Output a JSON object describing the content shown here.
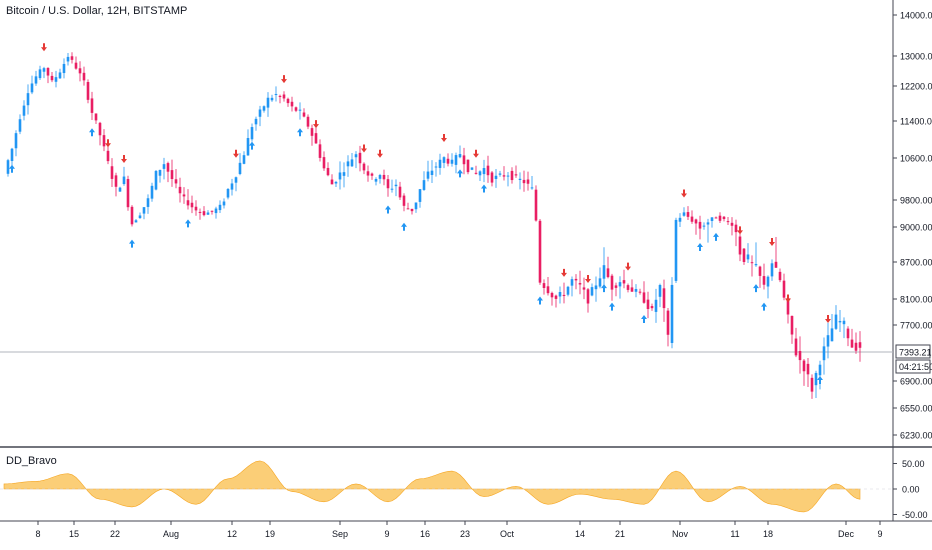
{
  "header": {
    "symbol_title": "Bitcoin / U.S. Dollar, 12H, BITSTAMP"
  },
  "indicator": {
    "name": "DD_Bravo"
  },
  "price_axis": {
    "ticks": [
      "14000.00",
      "13000.00",
      "12200.00",
      "11400.00",
      "10600.00",
      "9800.00",
      "9000.00",
      "8700.00",
      "8100.00",
      "7700.00",
      "6900.00",
      "6550.00",
      "6230.00"
    ],
    "last_price": "7393.21",
    "countdown": "04:21:50"
  },
  "indicator_axis": {
    "ticks": [
      "50.00",
      "0.00",
      "-50.00"
    ]
  },
  "time_axis": {
    "ticks": [
      "8",
      "15",
      "22",
      "Aug",
      "12",
      "19",
      "Sep",
      "9",
      "16",
      "23",
      "Oct",
      "14",
      "21",
      "Nov",
      "11",
      "18",
      "Dec",
      "9"
    ]
  },
  "colors": {
    "bull": "#2196f3",
    "bear": "#e91e63",
    "buy_arrow": "#2196f3",
    "sell_arrow": "#e53935",
    "osc_fill": "#fbc968",
    "osc_line": "#f5a623",
    "price_line": "#b2b5be",
    "grid_border": "#434651"
  },
  "chart_data": [
    {
      "type": "candlestick",
      "title": "Bitcoin / U.S. Dollar, 12H, BITSTAMP",
      "ylim": [
        6150,
        14200
      ],
      "close_path": [
        [
          0,
          10300
        ],
        [
          2,
          10800
        ],
        [
          4,
          11500
        ],
        [
          6,
          12100
        ],
        [
          8,
          12450
        ],
        [
          10,
          12700
        ],
        [
          12,
          12300
        ],
        [
          14,
          12600
        ],
        [
          16,
          13000
        ],
        [
          18,
          12700
        ],
        [
          20,
          12300
        ],
        [
          22,
          11600
        ],
        [
          24,
          11100
        ],
        [
          26,
          10500
        ],
        [
          28,
          10000
        ],
        [
          30,
          10200
        ],
        [
          32,
          9100
        ],
        [
          34,
          9400
        ],
        [
          36,
          9800
        ],
        [
          38,
          10300
        ],
        [
          40,
          10500
        ],
        [
          42,
          10200
        ],
        [
          44,
          9900
        ],
        [
          46,
          9700
        ],
        [
          48,
          9500
        ],
        [
          50,
          9400
        ],
        [
          52,
          9450
        ],
        [
          54,
          9600
        ],
        [
          56,
          10000
        ],
        [
          58,
          10300
        ],
        [
          60,
          10700
        ],
        [
          62,
          11300
        ],
        [
          64,
          11600
        ],
        [
          66,
          11900
        ],
        [
          68,
          12000
        ],
        [
          70,
          11900
        ],
        [
          72,
          11700
        ],
        [
          74,
          11600
        ],
        [
          76,
          11300
        ],
        [
          78,
          10900
        ],
        [
          80,
          10400
        ],
        [
          82,
          10100
        ],
        [
          84,
          10300
        ],
        [
          86,
          10500
        ],
        [
          88,
          10700
        ],
        [
          90,
          10400
        ],
        [
          92,
          10200
        ],
        [
          94,
          10300
        ],
        [
          96,
          10000
        ],
        [
          98,
          10100
        ],
        [
          100,
          9600
        ],
        [
          102,
          9500
        ],
        [
          104,
          10000
        ],
        [
          106,
          10300
        ],
        [
          108,
          10450
        ],
        [
          110,
          10600
        ],
        [
          112,
          10500
        ],
        [
          114,
          10700
        ],
        [
          116,
          10400
        ],
        [
          118,
          10300
        ],
        [
          120,
          10400
        ],
        [
          122,
          10200
        ],
        [
          124,
          10250
        ],
        [
          126,
          10300
        ],
        [
          128,
          10200
        ],
        [
          130,
          10150
        ],
        [
          132,
          10000
        ],
        [
          134,
          8400
        ],
        [
          136,
          8250
        ],
        [
          138,
          8100
        ],
        [
          140,
          8200
        ],
        [
          142,
          8400
        ],
        [
          144,
          8300
        ],
        [
          146,
          8100
        ],
        [
          148,
          8350
        ],
        [
          150,
          8600
        ],
        [
          152,
          8300
        ],
        [
          154,
          8400
        ],
        [
          156,
          8300
        ],
        [
          158,
          8200
        ],
        [
          160,
          8100
        ],
        [
          162,
          7900
        ],
        [
          164,
          8300
        ],
        [
          166,
          7500
        ],
        [
          168,
          9200
        ],
        [
          170,
          9400
        ],
        [
          172,
          9200
        ],
        [
          174,
          9000
        ],
        [
          176,
          9150
        ],
        [
          178,
          9300
        ],
        [
          180,
          9200
        ],
        [
          182,
          9100
        ],
        [
          184,
          8800
        ],
        [
          186,
          8700
        ],
        [
          188,
          8600
        ],
        [
          190,
          8300
        ],
        [
          192,
          8700
        ],
        [
          194,
          8400
        ],
        [
          196,
          7800
        ],
        [
          198,
          7300
        ],
        [
          200,
          7100
        ],
        [
          202,
          6800
        ],
        [
          204,
          7200
        ],
        [
          206,
          7500
        ],
        [
          208,
          7800
        ],
        [
          210,
          7700
        ],
        [
          212,
          7400
        ],
        [
          214,
          7393
        ]
      ]
    },
    {
      "type": "area",
      "title": "DD_Bravo",
      "ylim": [
        -75,
        75
      ],
      "x": [
        0,
        8,
        16,
        24,
        32,
        40,
        48,
        56,
        64,
        72,
        80,
        88,
        96,
        104,
        112,
        120,
        128,
        136,
        144,
        152,
        160,
        168,
        176,
        184,
        192,
        200,
        208,
        214
      ],
      "values": [
        10,
        15,
        30,
        -20,
        -35,
        0,
        -30,
        20,
        55,
        -5,
        -25,
        10,
        -25,
        20,
        35,
        -15,
        5,
        -30,
        -10,
        -20,
        -30,
        35,
        -25,
        5,
        -30,
        -45,
        10,
        -20
      ]
    }
  ]
}
